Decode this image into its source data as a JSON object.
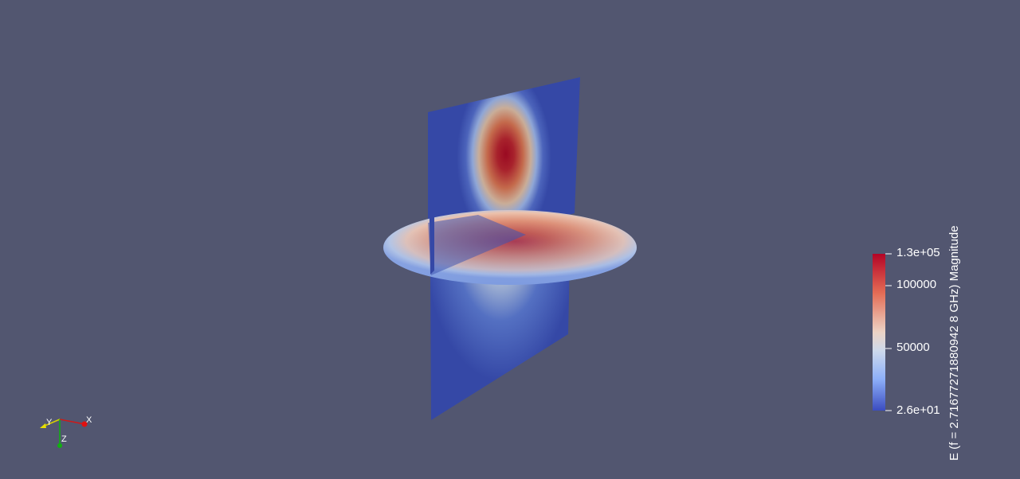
{
  "colors": {
    "background": "#525670",
    "colormap_low": "#3b4cc0",
    "colormap_mid": "#dddddd",
    "colormap_high": "#b40426",
    "axis_x": "#e01010",
    "axis_y": "#e8e000",
    "axis_z": "#10b010"
  },
  "render": {
    "objects": [
      "vertical-slice-plane",
      "horizontal-slice-disk"
    ],
    "colormap": "Cool to Warm"
  },
  "colorbar": {
    "title": "E (f = 2.71677271880942 8 GHz) Magnitude",
    "ticks": [
      {
        "label": "1.3e+05",
        "value": 130000
      },
      {
        "label": "100000",
        "value": 100000
      },
      {
        "label": "50000",
        "value": 50000
      },
      {
        "label": "2.6e+01",
        "value": 26
      }
    ],
    "range": [
      26,
      130000
    ]
  },
  "axes_widget": {
    "x_label": "X",
    "y_label": "Y",
    "z_label": "Z"
  }
}
